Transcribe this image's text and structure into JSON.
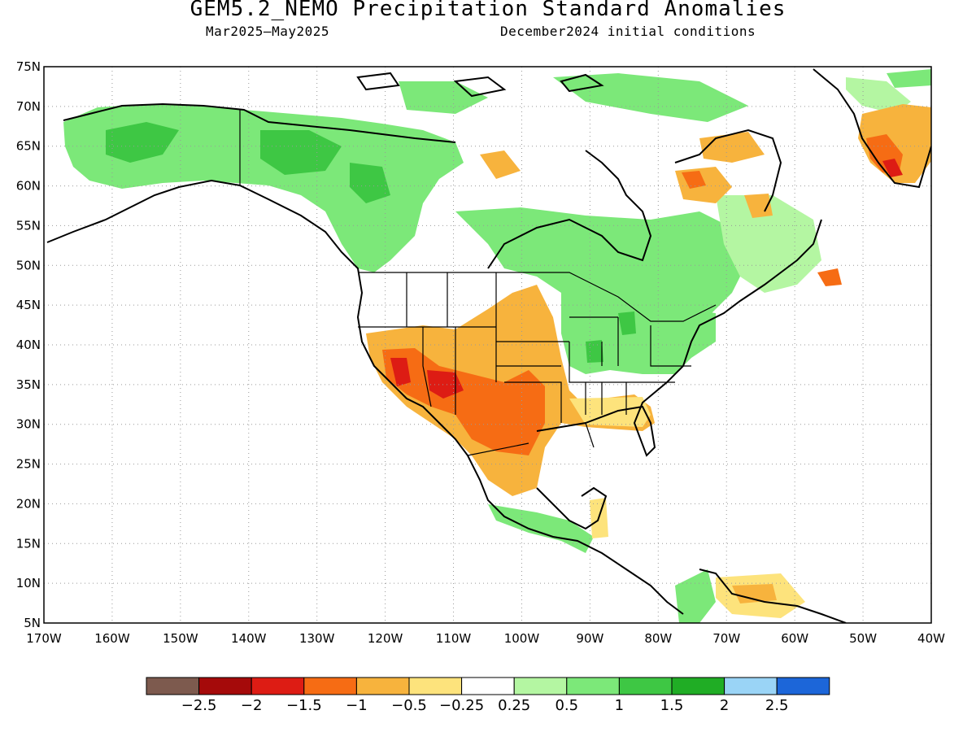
{
  "title": "GEM5.2_NEMO Precipitation Standard Anomalies",
  "period": "Mar2025–May2025",
  "init": "December2024 initial conditions",
  "lat_labels": [
    "75N",
    "70N",
    "65N",
    "60N",
    "55N",
    "50N",
    "45N",
    "40N",
    "35N",
    "30N",
    "25N",
    "20N",
    "15N",
    "10N",
    "5N"
  ],
  "lon_labels": [
    "170W",
    "160W",
    "150W",
    "140W",
    "130W",
    "120W",
    "110W",
    "100W",
    "90W",
    "80W",
    "70W",
    "60W",
    "50W",
    "40W"
  ],
  "colorbar": {
    "colors": [
      "#7d5a4e",
      "#a50a0a",
      "#dd1c14",
      "#f66c14",
      "#f7b33d",
      "#fde37c",
      "#ffffff",
      "#b4f6a2",
      "#7ce879",
      "#3ec744",
      "#20ad25",
      "#9ad4f6",
      "#1c66d9"
    ],
    "labels": [
      "−2.5",
      "−2",
      "−1.5",
      "−1",
      "−0.5",
      "−0.25",
      "0.25",
      "0.5",
      "1",
      "1.5",
      "2",
      "2.5"
    ]
  }
}
